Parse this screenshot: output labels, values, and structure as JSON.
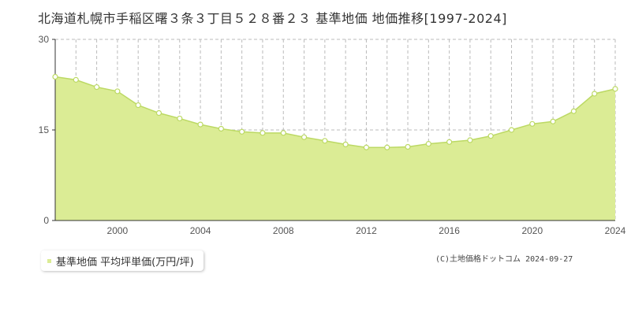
{
  "title": "北海道札幌市手稲区曙３条３丁目５２８番２３ 基準地価 地価推移[1997-2024]",
  "legend": {
    "label": "基準地価 平均坪単価(万円/坪)"
  },
  "copyright": "(C)土地価格ドットコム 2024-09-27",
  "colors": {
    "fill": "#dbec95",
    "line": "#bcd964",
    "point_fill": "#ffffff",
    "axis": "#333333",
    "grid": "#bbbbbb"
  },
  "chart_data": {
    "type": "area",
    "x": [
      1997,
      1998,
      1999,
      2000,
      2001,
      2002,
      2003,
      2004,
      2005,
      2006,
      2007,
      2008,
      2009,
      2010,
      2011,
      2012,
      2013,
      2014,
      2015,
      2016,
      2017,
      2018,
      2019,
      2020,
      2021,
      2022,
      2023,
      2024
    ],
    "series": [
      {
        "name": "基準地価 平均坪単価(万円/坪)",
        "values": [
          23.8,
          23.3,
          22.1,
          21.4,
          19.1,
          17.8,
          16.9,
          15.9,
          15.2,
          14.7,
          14.5,
          14.5,
          13.8,
          13.2,
          12.6,
          12.1,
          12.1,
          12.2,
          12.7,
          13.0,
          13.3,
          14.0,
          15.0,
          16.0,
          16.4,
          18.1,
          21.0,
          21.8
        ]
      }
    ],
    "xticks": [
      "2000",
      "2004",
      "2008",
      "2012",
      "2016",
      "2020",
      "2024"
    ],
    "yticks": [
      "0",
      "15",
      "30"
    ],
    "xlim": [
      1997,
      2024
    ],
    "ylim": [
      0,
      30
    ],
    "xlabel": "",
    "ylabel": "",
    "grid": "vertical dashed per year, horizontal dashed at 15",
    "legend_position": "bottom-left"
  }
}
